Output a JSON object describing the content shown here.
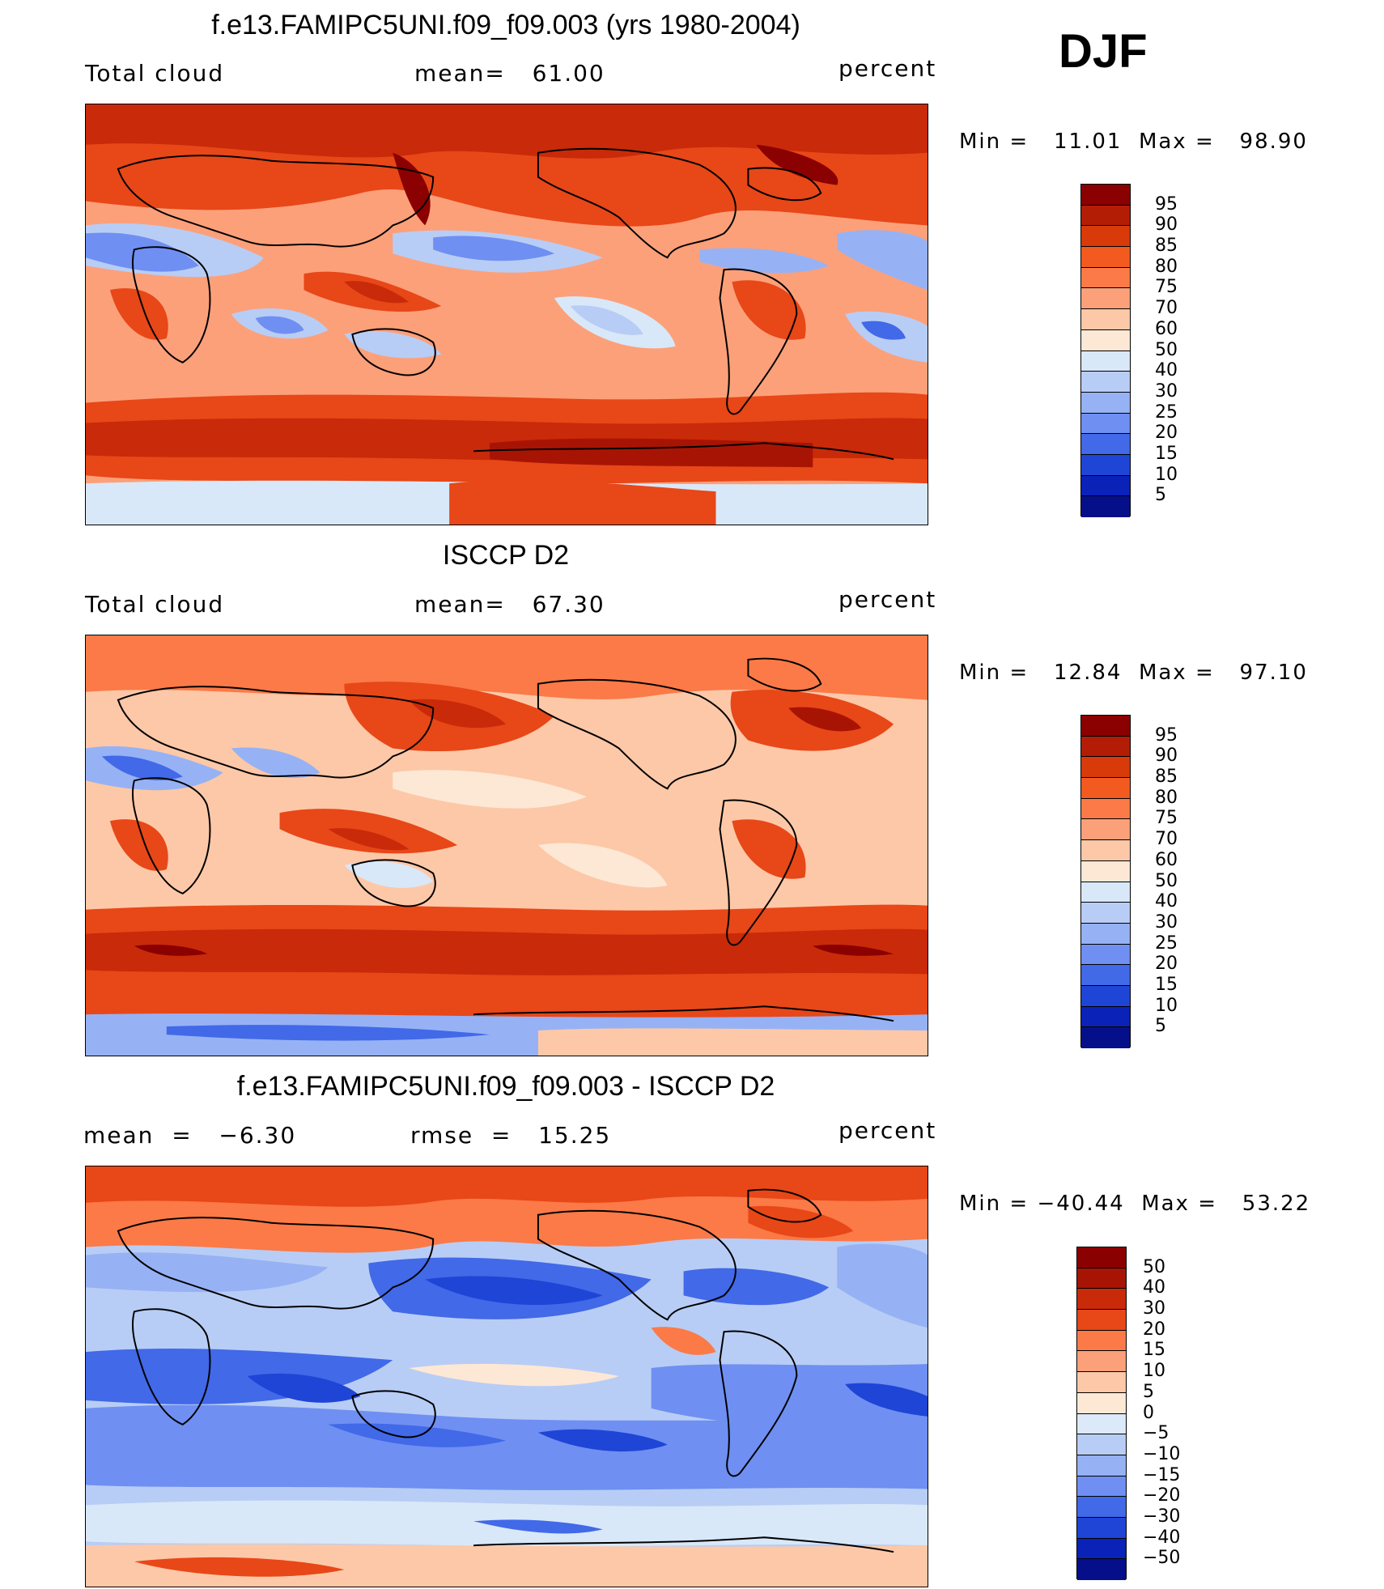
{
  "season": "DJF",
  "units": "percent",
  "panels": [
    {
      "title": "f.e13.FAMIPC5UNI.f09_f09.003 (yrs 1980-2004)",
      "left_label": "Total cloud",
      "center_label": "mean=   61.00",
      "right_label": "percent",
      "minmax": "Min =   11.01  Max =   98.90",
      "kind": "model",
      "colorbar_labels": [
        "95",
        "90",
        "85",
        "80",
        "75",
        "70",
        "60",
        "50",
        "40",
        "30",
        "25",
        "20",
        "15",
        "10",
        "5"
      ]
    },
    {
      "title": "ISCCP D2",
      "left_label": "Total cloud",
      "center_label": "mean=   67.30",
      "right_label": "percent",
      "minmax": "Min =   12.84  Max =   97.10",
      "kind": "obs",
      "colorbar_labels": [
        "95",
        "90",
        "85",
        "80",
        "75",
        "70",
        "60",
        "50",
        "40",
        "30",
        "25",
        "20",
        "15",
        "10",
        "5"
      ]
    },
    {
      "title": "f.e13.FAMIPC5UNI.f09_f09.003 - ISCCP D2",
      "left_label": "mean  =   −6.30",
      "center_label": "rmse  =   15.25",
      "right_label": "percent",
      "minmax": "Min = −40.44  Max =   53.22",
      "kind": "diff",
      "colorbar_labels": [
        "50",
        "40",
        "30",
        "20",
        "15",
        "10",
        "5",
        "0",
        "−5",
        "−10",
        "−15",
        "−20",
        "−30",
        "−40",
        "−50"
      ]
    }
  ],
  "colorbar_colors": [
    "#8b0000",
    "#b31d05",
    "#d93a0a",
    "#f25a1f",
    "#fb7a47",
    "#fca07a",
    "#fdc8a8",
    "#fde8d5",
    "#d8e8f8",
    "#b8cdf5",
    "#96b2f5",
    "#6f8ff2",
    "#4169e8",
    "#1f45d6",
    "#0b22b8",
    "#060f8a"
  ],
  "diff_colorbar_colors": [
    "#8b0000",
    "#a81404",
    "#c92a09",
    "#e84718",
    "#fb7a47",
    "#fca07a",
    "#fdc8a8",
    "#fde8d5",
    "#dce9f8",
    "#b8cdf5",
    "#96b2f5",
    "#6f8ff2",
    "#4169e8",
    "#1f45d6",
    "#0b22b8",
    "#060f8a"
  ]
}
